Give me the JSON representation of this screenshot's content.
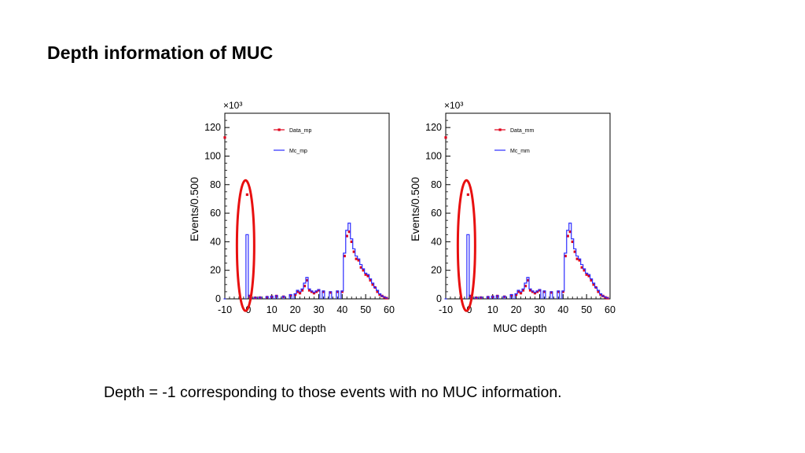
{
  "slide": {
    "title": "Depth information of MUC",
    "caption": "Depth = -1 corresponding to those events with no MUC information."
  },
  "colors": {
    "data_marker": "#e0001a",
    "mc_line": "#2b2bff",
    "highlight_ellipse": "#e81010"
  },
  "chart_data": [
    {
      "type": "line",
      "xlabel": "MUC depth",
      "ylabel": "Events/0.500",
      "y_multiplier_label": "×10³",
      "xlim": [
        -10,
        60
      ],
      "ylim": [
        0,
        130
      ],
      "xticks": [
        -10,
        0,
        10,
        20,
        30,
        40,
        50,
        60
      ],
      "yticks": [
        0,
        20,
        40,
        60,
        80,
        100,
        120
      ],
      "highlight": {
        "shape": "ellipse",
        "around_x": -1
      },
      "series": [
        {
          "name": "Data_mp",
          "style": "markers",
          "x": [
            -10,
            -0.5,
            0.5,
            1,
            3,
            5,
            8,
            10,
            12,
            15,
            18,
            20,
            21,
            22,
            23,
            24,
            25,
            26,
            27,
            28,
            29,
            30,
            32,
            35,
            38,
            40,
            41,
            42,
            43,
            44,
            45,
            46,
            47,
            48,
            49,
            50,
            51,
            52,
            53,
            54,
            55,
            56,
            57,
            58,
            59
          ],
          "y": [
            113,
            73,
            2,
            0.5,
            0.8,
            0.9,
            1.2,
            1.5,
            2,
            1.5,
            2.5,
            3,
            5,
            4,
            6,
            9,
            13,
            6,
            5,
            4,
            5,
            6,
            5,
            4.5,
            5,
            5,
            30,
            44,
            47,
            40,
            33,
            28,
            27,
            22,
            20,
            17,
            16,
            13,
            10,
            8,
            5,
            3,
            2,
            1,
            0.5
          ]
        },
        {
          "name": "Mc_mp",
          "style": "step",
          "x": [
            -10,
            -0.5,
            0.5,
            1,
            3,
            5,
            8,
            10,
            12,
            15,
            18,
            20,
            21,
            22,
            23,
            24,
            25,
            26,
            27,
            28,
            29,
            30,
            32,
            35,
            38,
            40,
            41,
            42,
            43,
            44,
            45,
            46,
            47,
            48,
            49,
            50,
            51,
            52,
            53,
            54,
            55,
            56,
            57,
            58,
            59
          ],
          "y": [
            0,
            45,
            2,
            0.8,
            1,
            1.2,
            1.5,
            1.8,
            2.2,
            1.8,
            3,
            3.5,
            6,
            5,
            7,
            11,
            15,
            7,
            5.5,
            4.5,
            5.5,
            6.5,
            5.5,
            5,
            5.5,
            5.5,
            32,
            48,
            53,
            42,
            35,
            30,
            28,
            24,
            21,
            18,
            17,
            14,
            11,
            8,
            6,
            3.5,
            2,
            1.2,
            0.6
          ]
        }
      ]
    },
    {
      "type": "line",
      "xlabel": "MUC depth",
      "ylabel": "Events/0.500",
      "y_multiplier_label": "×10³",
      "xlim": [
        -10,
        60
      ],
      "ylim": [
        0,
        130
      ],
      "xticks": [
        -10,
        0,
        10,
        20,
        30,
        40,
        50,
        60
      ],
      "yticks": [
        0,
        20,
        40,
        60,
        80,
        100,
        120
      ],
      "highlight": {
        "shape": "ellipse",
        "around_x": -1
      },
      "series": [
        {
          "name": "Data_mm",
          "style": "markers",
          "x": [
            -10,
            -0.5,
            0.5,
            1,
            3,
            5,
            8,
            10,
            12,
            15,
            18,
            20,
            21,
            22,
            23,
            24,
            25,
            26,
            27,
            28,
            29,
            30,
            32,
            35,
            38,
            40,
            41,
            42,
            43,
            44,
            45,
            46,
            47,
            48,
            49,
            50,
            51,
            52,
            53,
            54,
            55,
            56,
            57,
            58,
            59
          ],
          "y": [
            113,
            73,
            2,
            0.5,
            0.8,
            0.9,
            1.2,
            1.5,
            2,
            1.5,
            2.5,
            3,
            5,
            4,
            6,
            9,
            13,
            6,
            5,
            4,
            5,
            6,
            5,
            4.5,
            5,
            5,
            30,
            44,
            47,
            40,
            33,
            28,
            27,
            22,
            20,
            17,
            16,
            13,
            10,
            8,
            5,
            3,
            2,
            1,
            0.5
          ]
        },
        {
          "name": "Mc_mm",
          "style": "step",
          "x": [
            -10,
            -0.5,
            0.5,
            1,
            3,
            5,
            8,
            10,
            12,
            15,
            18,
            20,
            21,
            22,
            23,
            24,
            25,
            26,
            27,
            28,
            29,
            30,
            32,
            35,
            38,
            40,
            41,
            42,
            43,
            44,
            45,
            46,
            47,
            48,
            49,
            50,
            51,
            52,
            53,
            54,
            55,
            56,
            57,
            58,
            59
          ],
          "y": [
            0,
            45,
            2,
            0.8,
            1,
            1.2,
            1.5,
            1.8,
            2.2,
            1.8,
            3,
            3.5,
            6,
            5,
            7,
            11,
            15,
            7,
            5.5,
            4.5,
            5.5,
            6.5,
            5.5,
            5,
            5.5,
            5.5,
            32,
            48,
            53,
            42,
            35,
            30,
            28,
            24,
            21,
            18,
            17,
            14,
            11,
            8,
            6,
            3.5,
            2,
            1.2,
            0.6
          ]
        }
      ]
    }
  ]
}
